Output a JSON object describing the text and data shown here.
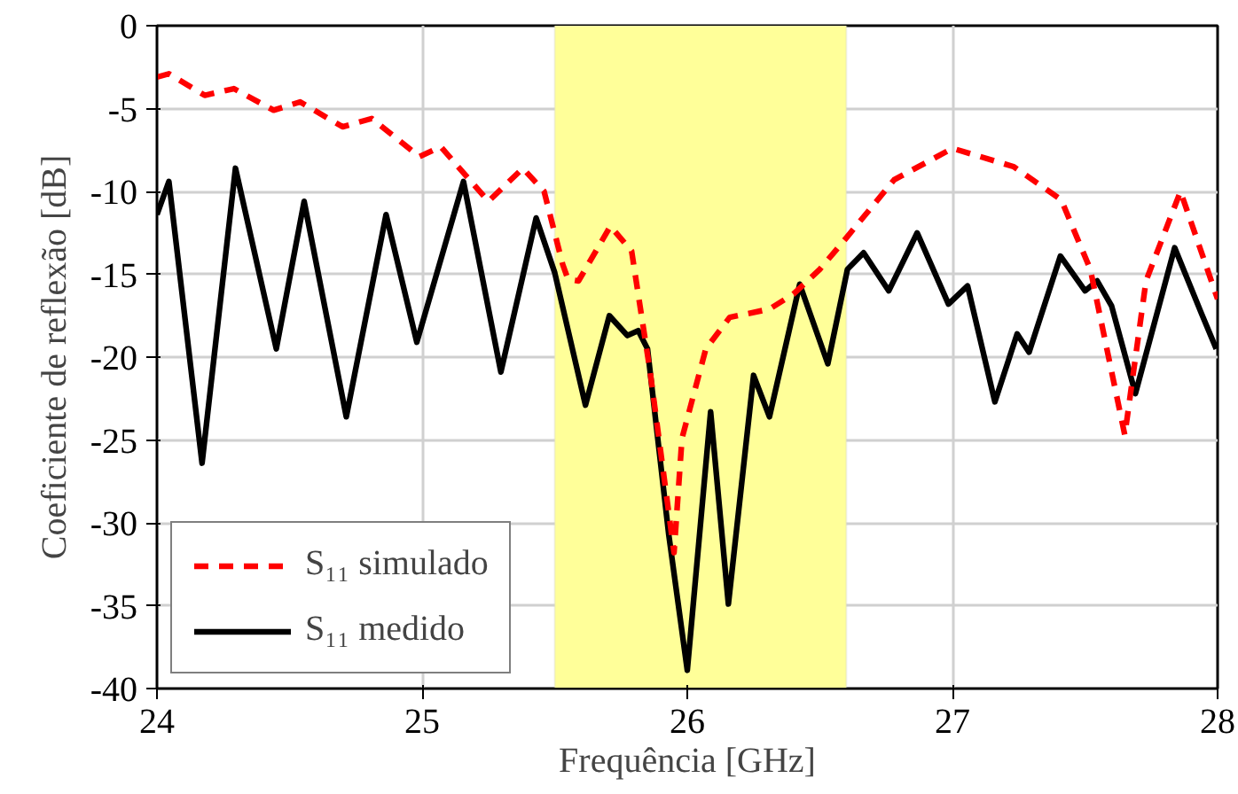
{
  "chart_data": {
    "type": "line",
    "xlabel": "Frequência [GHz]",
    "ylabel": "Coeficiente de reflexão [dB]",
    "xlim": [
      24,
      28
    ],
    "xticks": [
      24,
      25,
      26,
      27,
      28
    ],
    "ylim": [
      -40,
      0
    ],
    "yticks": [
      -40,
      -35,
      -30,
      -25,
      -20,
      -15,
      -10,
      -5,
      0
    ],
    "grid": true,
    "legend": "bottom left",
    "bands": [
      {
        "axis": "x",
        "from": 25.5,
        "to": 26.6,
        "color": "#ffff99"
      }
    ],
    "series": [
      {
        "name": "S₁₁ simulado",
        "color": "#ff0000",
        "line_style": "dashed",
        "x": [
          24,
          24.045,
          24.18,
          24.29,
          24.44,
          24.54,
          24.7,
          24.81,
          24.99,
          25.07,
          25.25,
          25.38,
          25.46,
          25.53,
          25.55,
          25.59,
          25.71,
          25.79,
          25.86,
          25.95,
          25.98,
          26.07,
          26.16,
          26.31,
          26.4,
          26.5,
          26.6,
          26.78,
          27.0,
          27.23,
          27.41,
          27.52,
          27.65,
          27.73,
          27.86,
          28.0
        ],
        "values": [
          -3.1,
          -2.9,
          -4.2,
          -3.8,
          -5.1,
          -4.6,
          -6.1,
          -5.6,
          -7.9,
          -7.3,
          -10.6,
          -8.6,
          -10.0,
          -14.4,
          -15.3,
          -15.4,
          -12.1,
          -13.6,
          -20.9,
          -31.8,
          -24.9,
          -19.5,
          -17.6,
          -17.1,
          -16.2,
          -14.7,
          -12.8,
          -9.3,
          -7.4,
          -8.5,
          -10.5,
          -14.7,
          -24.7,
          -15.4,
          -10.0,
          -16.5
        ]
      },
      {
        "name": "S₁₁ medido",
        "color": "#000000",
        "line_style": "solid",
        "x": [
          24,
          24.045,
          24.17,
          24.296,
          24.45,
          24.555,
          24.714,
          24.864,
          24.98,
          25.156,
          25.297,
          25.43,
          25.5,
          25.616,
          25.706,
          25.774,
          25.815,
          25.85,
          25.93,
          26.0,
          26.088,
          26.155,
          26.25,
          26.31,
          26.424,
          26.53,
          26.604,
          26.665,
          26.76,
          26.867,
          26.985,
          27.057,
          27.16,
          27.244,
          27.289,
          27.407,
          27.5,
          27.546,
          27.6,
          27.69,
          27.838,
          27.94,
          27.995
        ],
        "values": [
          -11.4,
          -9.4,
          -26.4,
          -8.6,
          -19.5,
          -10.6,
          -23.6,
          -11.4,
          -19.1,
          -9.4,
          -20.9,
          -11.6,
          -14.9,
          -22.9,
          -17.5,
          -18.7,
          -18.4,
          -19.5,
          -30.7,
          -38.9,
          -23.3,
          -34.9,
          -21.1,
          -23.6,
          -15.6,
          -20.4,
          -14.7,
          -13.7,
          -16.0,
          -12.5,
          -16.8,
          -15.7,
          -22.7,
          -18.6,
          -19.7,
          -13.9,
          -16.0,
          -15.4,
          -16.9,
          -22.2,
          -13.4,
          -17.4,
          -19.5
        ]
      }
    ]
  }
}
